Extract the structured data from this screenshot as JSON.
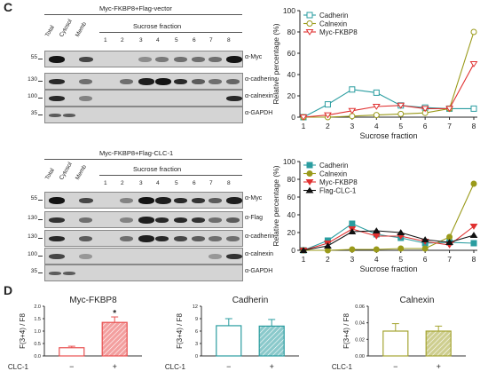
{
  "panel_c": {
    "letter": "C",
    "blot1": {
      "title": "Myc-FKBP8+Flag-vector",
      "header": "Sucrose fraction",
      "lanes": [
        "Total",
        "Cytosol",
        "Memb",
        "1",
        "2",
        "3",
        "4",
        "5",
        "6",
        "7",
        "8"
      ],
      "rows": [
        {
          "mw": "55",
          "label": "α-Myc"
        },
        {
          "mw": "130",
          "label": "α-cadherin"
        },
        {
          "mw": "100",
          "label": "α-calnexin"
        },
        {
          "mw": "35",
          "label": "α-GAPDH"
        }
      ]
    },
    "blot2": {
      "title": "Myc-FKBP8+Flag-CLC-1",
      "header": "Sucrose fraction",
      "lanes": [
        "Total",
        "Cytosol",
        "Memb",
        "1",
        "2",
        "3",
        "4",
        "5",
        "6",
        "7",
        "8"
      ],
      "rows": [
        {
          "mw": "55",
          "label": "α-Myc"
        },
        {
          "mw": "130",
          "label": "α-Flag"
        },
        {
          "mw": "130",
          "label": "α-cadherin"
        },
        {
          "mw": "100",
          "label": "α-calnexin"
        },
        {
          "mw": "35",
          "label": "α-GAPDH"
        }
      ]
    }
  },
  "panel_d": {
    "letter": "D",
    "group_label": "CLC-1",
    "tick_labels": [
      "−",
      "+"
    ]
  },
  "chart_data": [
    {
      "type": "line",
      "ylabel": "Relative percentage (%)",
      "xlabel": "Sucrose fraction",
      "ylim": [
        0,
        100
      ],
      "yticks": [
        0,
        20,
        40,
        60,
        80,
        100
      ],
      "x": [
        1,
        2,
        3,
        4,
        5,
        6,
        7,
        8
      ],
      "legend": "top-center",
      "series": [
        {
          "name": "Cadherin",
          "values": [
            0,
            12,
            26,
            23,
            11,
            9,
            8,
            8
          ],
          "color": "#2a9da0",
          "marker": "square-open"
        },
        {
          "name": "Calnexin",
          "values": [
            0,
            0,
            1,
            2,
            3,
            4,
            8,
            80
          ],
          "color": "#9a9a1a",
          "marker": "circle-open"
        },
        {
          "name": "Myc-FKBP8",
          "values": [
            0,
            2,
            6,
            10,
            11,
            8,
            8,
            50
          ],
          "color": "#e03030",
          "marker": "triangle-down-open"
        }
      ]
    },
    {
      "type": "line",
      "ylabel": "Relative percentage (%)",
      "xlabel": "Sucrose fraction",
      "ylim": [
        0,
        100
      ],
      "yticks": [
        0,
        20,
        40,
        60,
        80,
        100
      ],
      "x": [
        1,
        2,
        3,
        4,
        5,
        6,
        7,
        8
      ],
      "legend": "top-center",
      "series": [
        {
          "name": "Cadherin",
          "values": [
            0,
            11,
            30,
            18,
            14,
            8,
            9,
            8
          ],
          "color": "#2a9da0",
          "marker": "square"
        },
        {
          "name": "Calnexin",
          "values": [
            0,
            0,
            1,
            1,
            2,
            2,
            15,
            75
          ],
          "color": "#9a9a1a",
          "marker": "circle"
        },
        {
          "name": "Myc-FKBP8",
          "values": [
            0,
            8,
            24,
            16,
            16,
            10,
            6,
            27
          ],
          "color": "#e03030",
          "marker": "triangle-down"
        },
        {
          "name": "Flag-CLC-1",
          "values": [
            0,
            5,
            21,
            22,
            20,
            12,
            9,
            17
          ],
          "color": "#111111",
          "marker": "triangle-up"
        }
      ]
    },
    {
      "type": "bar",
      "title": "Myc-FKBP8",
      "ylabel": "F(3+4) / F8",
      "ylim": [
        0,
        2
      ],
      "yticks": [
        "0.0",
        "0.5",
        "1.0",
        "1.5",
        "2.0"
      ],
      "categories": [
        "−",
        "+"
      ],
      "values": [
        0.33,
        1.35
      ],
      "errors": [
        0.06,
        0.22
      ],
      "significance": [
        "",
        "*"
      ],
      "color": "#e85050"
    },
    {
      "type": "bar",
      "title": "Cadherin",
      "ylabel": "F(3+4) / F8",
      "ylim": [
        0,
        12
      ],
      "yticks": [
        "0",
        "3",
        "6",
        "9",
        "12"
      ],
      "categories": [
        "−",
        "+"
      ],
      "values": [
        7.3,
        7.2
      ],
      "errors": [
        1.7,
        1.6
      ],
      "significance": [
        "",
        ""
      ],
      "color": "#2a9da0"
    },
    {
      "type": "bar",
      "title": "Calnexin",
      "ylabel": "F(3+4) / F8",
      "ylim": [
        0,
        0.06
      ],
      "yticks": [
        "0.00",
        "0.02",
        "0.04",
        "0.06"
      ],
      "categories": [
        "−",
        "+"
      ],
      "values": [
        0.03,
        0.03
      ],
      "errors": [
        0.009,
        0.006
      ],
      "significance": [
        "",
        ""
      ],
      "color": "#a5a532"
    }
  ]
}
